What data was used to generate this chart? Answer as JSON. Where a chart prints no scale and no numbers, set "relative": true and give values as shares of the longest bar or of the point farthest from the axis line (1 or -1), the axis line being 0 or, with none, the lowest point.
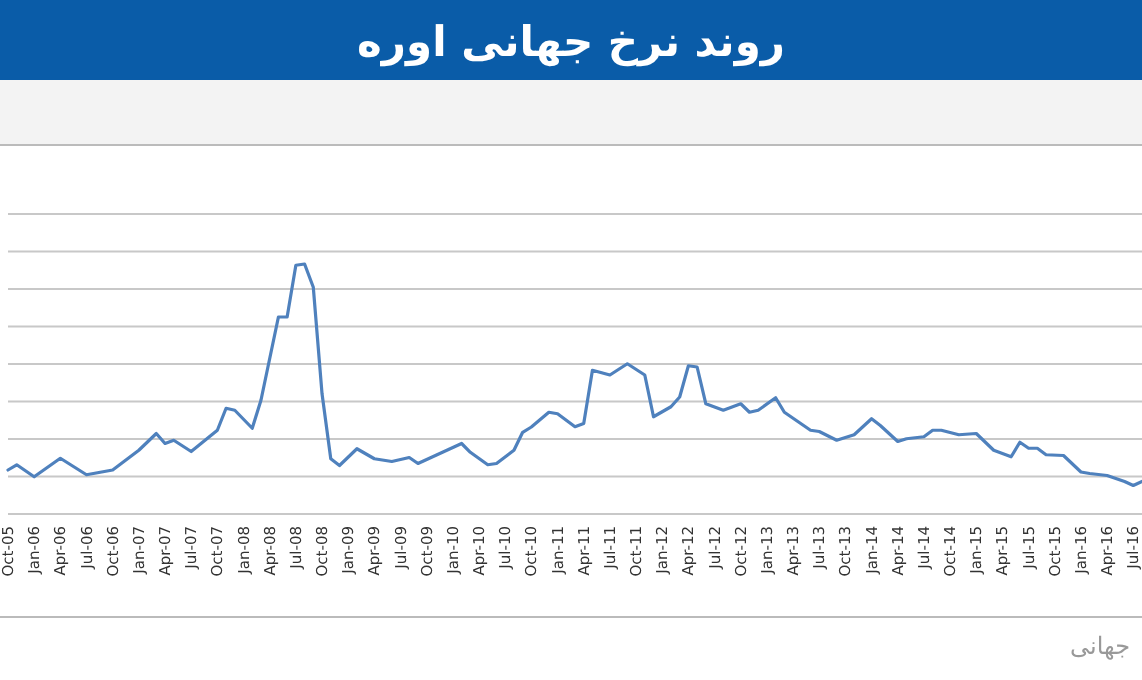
{
  "chart_data": {
    "type": "line",
    "title": "روند نرخ جهانی اوره",
    "relative": true,
    "grid": "y",
    "x": [
      "2005-10",
      "2005-11",
      "2006-01",
      "2006-04",
      "2006-07",
      "2006-10",
      "2007-01",
      "2007-03",
      "2007-04",
      "2007-05",
      "2007-07",
      "2007-10",
      "2007-11",
      "2007-12",
      "2008-02",
      "2008-03",
      "2008-05",
      "2008-06",
      "2008-07",
      "2008-08",
      "2008-09",
      "2008-10",
      "2008-11",
      "2008-12",
      "2009-02",
      "2009-04",
      "2009-06",
      "2009-08",
      "2009-09",
      "2010-02",
      "2010-03",
      "2010-05",
      "2010-06",
      "2010-08",
      "2010-09",
      "2010-10",
      "2010-12",
      "2011-01",
      "2011-03",
      "2011-04",
      "2011-05",
      "2011-07",
      "2011-09",
      "2011-11",
      "2011-12",
      "2012-02",
      "2012-03",
      "2012-04",
      "2012-05",
      "2012-06",
      "2012-08",
      "2012-10",
      "2012-11",
      "2012-12",
      "2013-02",
      "2013-03",
      "2013-06",
      "2013-07",
      "2013-09",
      "2013-11",
      "2014-01",
      "2014-02",
      "2014-04",
      "2014-05",
      "2014-07",
      "2014-08",
      "2014-09",
      "2014-11",
      "2015-01",
      "2015-03",
      "2015-05",
      "2015-06",
      "2015-07",
      "2015-08",
      "2015-09",
      "2015-11",
      "2016-01",
      "2016-02",
      "2016-04",
      "2016-06",
      "2016-07",
      "2016-08"
    ],
    "series": [
      {
        "color": "#4f81bd",
        "values": [
          0.176,
          0.197,
          0.149,
          0.223,
          0.157,
          0.176,
          0.255,
          0.322,
          0.282,
          0.295,
          0.25,
          0.335,
          0.423,
          0.415,
          0.343,
          0.455,
          0.788,
          0.788,
          0.995,
          1.0,
          0.907,
          0.481,
          0.221,
          0.194,
          0.261,
          0.221,
          0.21,
          0.226,
          0.202,
          0.282,
          0.247,
          0.197,
          0.202,
          0.255,
          0.327,
          0.348,
          0.407,
          0.401,
          0.349,
          0.362,
          0.575,
          0.556,
          0.601,
          0.556,
          0.389,
          0.429,
          0.468,
          0.593,
          0.588,
          0.441,
          0.415,
          0.441,
          0.407,
          0.415,
          0.465,
          0.407,
          0.335,
          0.33,
          0.295,
          0.317,
          0.381,
          0.354,
          0.29,
          0.301,
          0.309,
          0.335,
          0.335,
          0.317,
          0.322,
          0.255,
          0.229,
          0.287,
          0.263,
          0.263,
          0.237,
          0.234,
          0.168,
          0.162,
          0.154,
          0.13,
          0.114,
          0.13
        ]
      }
    ],
    "xlim": [
      "2005-10",
      "2016-08"
    ],
    "xticks": [
      {
        "value": "2005-10",
        "label": "Oct-05"
      },
      {
        "value": "2006-01",
        "label": "Jan-06"
      },
      {
        "value": "2006-04",
        "label": "Apr-06"
      },
      {
        "value": "2006-07",
        "label": "Jul-06"
      },
      {
        "value": "2006-10",
        "label": "Oct-06"
      },
      {
        "value": "2007-01",
        "label": "Jan-07"
      },
      {
        "value": "2007-04",
        "label": "Apr-07"
      },
      {
        "value": "2007-07",
        "label": "Jul-07"
      },
      {
        "value": "2007-10",
        "label": "Oct-07"
      },
      {
        "value": "2008-01",
        "label": "Jan-08"
      },
      {
        "value": "2008-04",
        "label": "Apr-08"
      },
      {
        "value": "2008-07",
        "label": "Jul-08"
      },
      {
        "value": "2008-10",
        "label": "Oct-08"
      },
      {
        "value": "2009-01",
        "label": "Jan-09"
      },
      {
        "value": "2009-04",
        "label": "Apr-09"
      },
      {
        "value": "2009-07",
        "label": "Jul-09"
      },
      {
        "value": "2009-10",
        "label": "Oct-09"
      },
      {
        "value": "2010-01",
        "label": "Jan-10"
      },
      {
        "value": "2010-04",
        "label": "Apr-10"
      },
      {
        "value": "2010-07",
        "label": "Jul-10"
      },
      {
        "value": "2010-10",
        "label": "Oct-10"
      },
      {
        "value": "2011-01",
        "label": "Jan-11"
      },
      {
        "value": "2011-04",
        "label": "Apr-11"
      },
      {
        "value": "2011-07",
        "label": "Jul-11"
      },
      {
        "value": "2011-10",
        "label": "Oct-11"
      },
      {
        "value": "2012-01",
        "label": "Jan-12"
      },
      {
        "value": "2012-04",
        "label": "Apr-12"
      },
      {
        "value": "2012-07",
        "label": "Jul-12"
      },
      {
        "value": "2012-10",
        "label": "Oct-12"
      },
      {
        "value": "2013-01",
        "label": "Jan-13"
      },
      {
        "value": "2013-04",
        "label": "Apr-13"
      },
      {
        "value": "2013-07",
        "label": "Jul-13"
      },
      {
        "value": "2013-10",
        "label": "Oct-13"
      },
      {
        "value": "2014-01",
        "label": "Jan-14"
      },
      {
        "value": "2014-04",
        "label": "Apr-14"
      },
      {
        "value": "2014-07",
        "label": "Jul-14"
      },
      {
        "value": "2014-10",
        "label": "Oct-14"
      },
      {
        "value": "2015-01",
        "label": "Jan-15"
      },
      {
        "value": "2015-04",
        "label": "Apr-15"
      },
      {
        "value": "2015-07",
        "label": "Jul-15"
      },
      {
        "value": "2015-10",
        "label": "Oct-15"
      },
      {
        "value": "2016-01",
        "label": "Jan-16"
      },
      {
        "value": "2016-04",
        "label": "Apr-16"
      },
      {
        "value": "2016-07",
        "label": "Jul-16"
      }
    ],
    "annotations": [
      "جهانی"
    ]
  }
}
